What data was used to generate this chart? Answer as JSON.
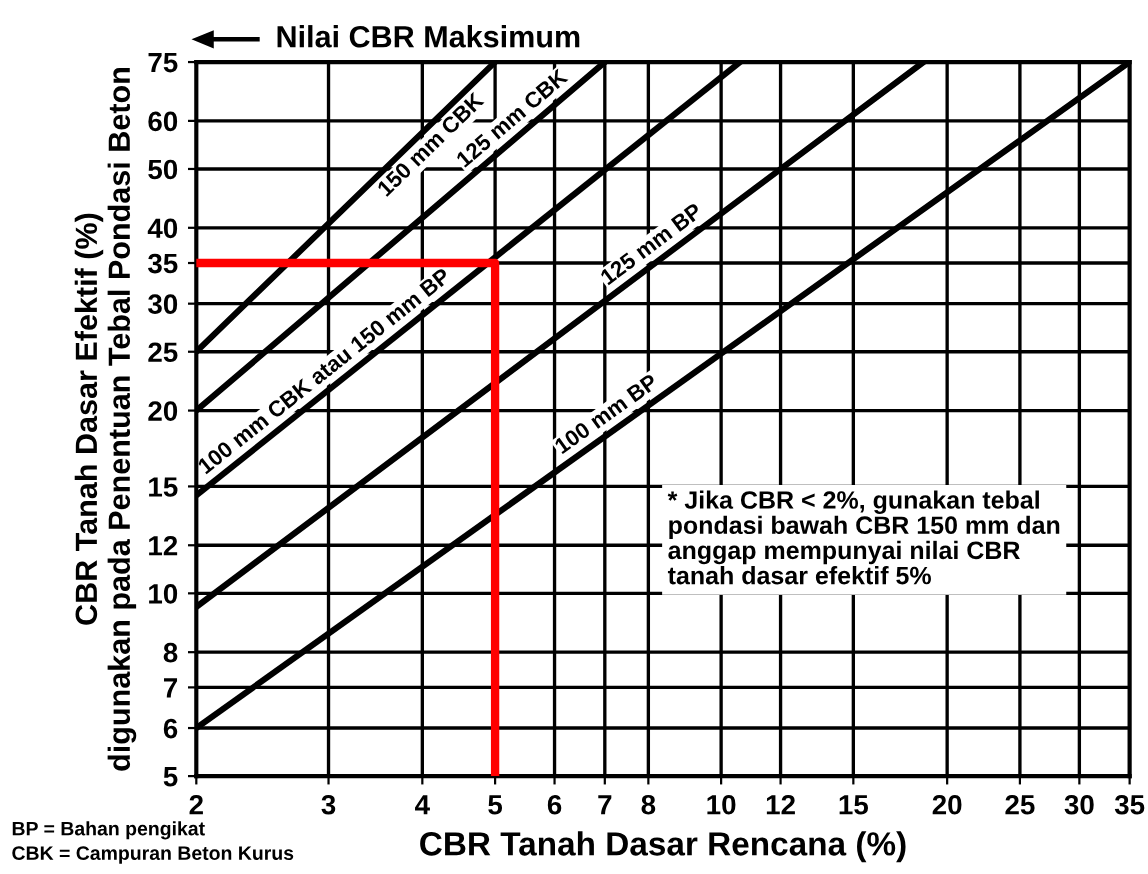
{
  "chart_data": {
    "type": "line",
    "title": "Nilai CBR Maksimum",
    "xlabel": "CBR Tanah Dasar Rencana (%)",
    "ylabel": "CBR Tanah Dasar Efektif (%)\ndigunakan pada Penentuan Tebal Pondasi Beton",
    "series": [
      {
        "name": "150 mm CBK",
        "color": "#000000",
        "x": [
          2,
          5
        ],
        "values": [
          25,
          75
        ]
      },
      {
        "name": "125 mm CBK",
        "color": "#000000",
        "x": [
          2,
          7
        ],
        "values": [
          20,
          75
        ]
      },
      {
        "name": "100 mm CBK atau 150 mm BP",
        "color": "#000000",
        "x": [
          2,
          10.6
        ],
        "values": [
          14.5,
          75
        ]
      },
      {
        "name": "125 mm BP",
        "color": "#000000",
        "x": [
          2,
          18.6
        ],
        "values": [
          9.5,
          75
        ]
      },
      {
        "name": "100 mm BP",
        "color": "#000000",
        "x": [
          2,
          35
        ],
        "values": [
          6,
          75
        ]
      },
      {
        "color": "#ff0000",
        "x": [
          2,
          5,
          5
        ],
        "values": [
          35,
          35,
          5
        ]
      }
    ],
    "xlim": [
      2,
      35
    ],
    "ylim": [
      5,
      75
    ],
    "log": "xy",
    "xticks": [
      2,
      3,
      4,
      5,
      6,
      7,
      8,
      10,
      12,
      15,
      20,
      25,
      30,
      35
    ],
    "yticks": [
      5,
      6,
      7,
      8,
      10,
      12,
      15,
      20,
      25,
      30,
      35,
      40,
      50,
      60,
      75
    ],
    "grid": true,
    "annotations": [
      "* Jika CBR < 2%, gunakan tebal\npondasi bawah CBR 150 mm dan\nanggap mempunyai nilai CBR\ntanah dasar efektif 5%",
      "BP = Bahan pengikat",
      "CBK = Campuran Beton Kurus"
    ]
  }
}
